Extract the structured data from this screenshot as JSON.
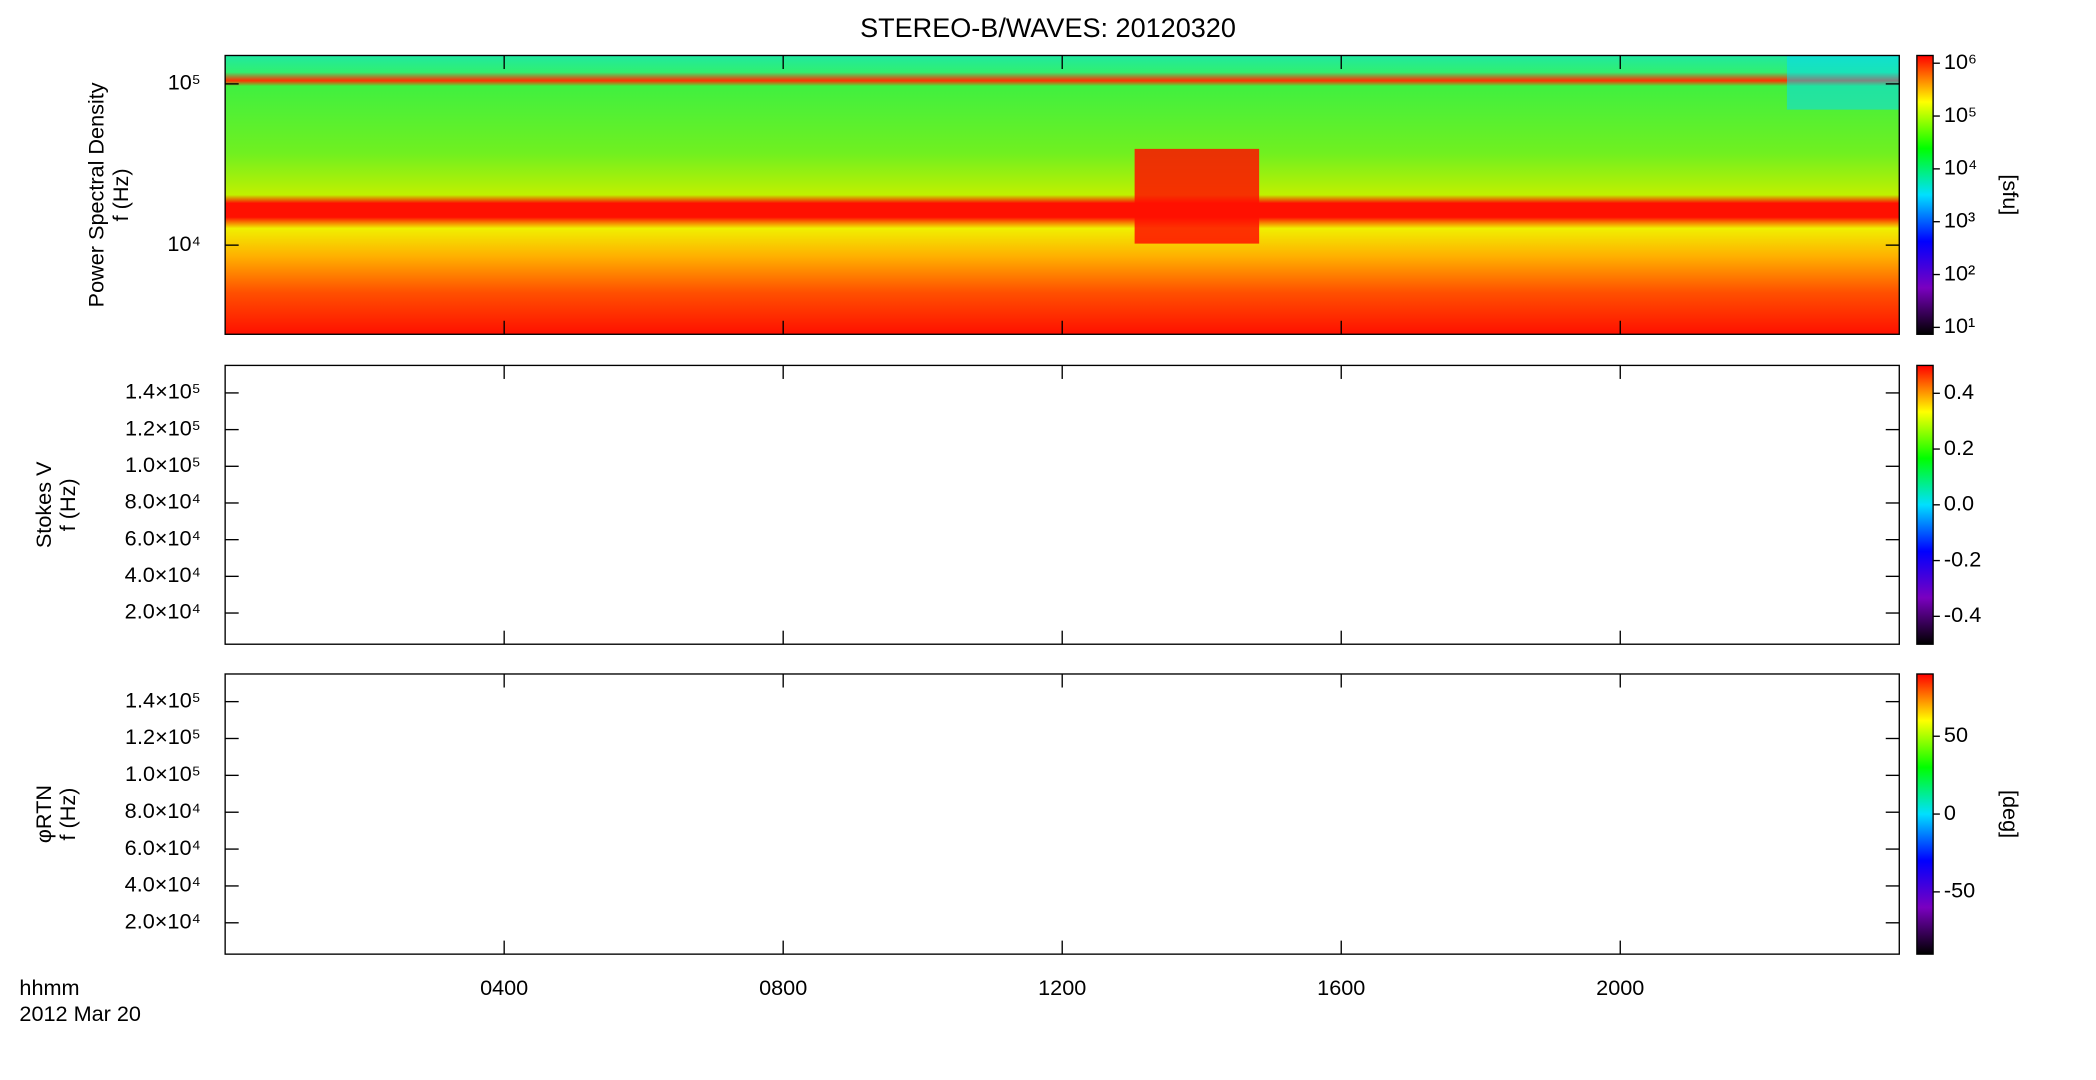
{
  "chart_data": [
    {
      "type": "spectrogram",
      "title": "STEREO-B/WAVES: 20120320",
      "y_label": [
        "Power Spectral Density",
        "f (Hz)"
      ],
      "yscale": "log",
      "ylim": [
        2800,
        150000
      ],
      "yticks": [
        {
          "value": 10000,
          "label": "10⁴"
        },
        {
          "value": 100000,
          "label": "10⁵"
        }
      ],
      "colorbar_label": "[sfu]",
      "cscale": "log",
      "clim": [
        7.4,
        1400000
      ],
      "cticks": [
        {
          "value": 10,
          "label": "10¹"
        },
        {
          "value": 100,
          "label": "10²"
        },
        {
          "value": 1000,
          "label": "10³"
        },
        {
          "value": 10000,
          "label": "10⁴"
        },
        {
          "value": 100000,
          "label": "10⁵"
        },
        {
          "value": 1000000,
          "label": "10⁶"
        }
      ],
      "colorscale": [
        "#000000",
        "#7a00c0",
        "#0000ff",
        "#00e0ff",
        "#00ff00",
        "#ffff00",
        "#ff0000"
      ]
    },
    {
      "type": "spectrogram",
      "y_label": [
        "Stokes V",
        "f (Hz)"
      ],
      "yscale": "linear",
      "ylim": [
        3000,
        155000
      ],
      "yticks": [
        {
          "value": 20000,
          "label": "2.0×10⁴"
        },
        {
          "value": 40000,
          "label": "4.0×10⁴"
        },
        {
          "value": 60000,
          "label": "6.0×10⁴"
        },
        {
          "value": 80000,
          "label": "8.0×10⁴"
        },
        {
          "value": 100000,
          "label": "1.0×10⁵"
        },
        {
          "value": 120000,
          "label": "1.2×10⁵"
        },
        {
          "value": 140000,
          "label": "1.4×10⁵"
        }
      ],
      "cscale": "linear",
      "clim": [
        -0.5,
        0.5
      ],
      "cticks": [
        {
          "value": -0.4,
          "label": "-0.4"
        },
        {
          "value": -0.2,
          "label": "-0.2"
        },
        {
          "value": 0,
          "label": "0.0"
        },
        {
          "value": 0.2,
          "label": "0.2"
        },
        {
          "value": 0.4,
          "label": "0.4"
        }
      ],
      "colorscale": [
        "#000000",
        "#7a00c0",
        "#0000ff",
        "#00e0ff",
        "#00ff00",
        "#ffff00",
        "#ff0000"
      ]
    },
    {
      "type": "spectrogram",
      "y_label": [
        "φRTN",
        "f (Hz)"
      ],
      "yscale": "linear",
      "ylim": [
        3000,
        155000
      ],
      "yticks": [
        {
          "value": 20000,
          "label": "2.0×10⁴"
        },
        {
          "value": 40000,
          "label": "4.0×10⁴"
        },
        {
          "value": 60000,
          "label": "6.0×10⁴"
        },
        {
          "value": 80000,
          "label": "8.0×10⁴"
        },
        {
          "value": 100000,
          "label": "1.0×10⁵"
        },
        {
          "value": 120000,
          "label": "1.2×10⁵"
        },
        {
          "value": 140000,
          "label": "1.4×10⁵"
        }
      ],
      "colorbar_label": "[deg]",
      "cscale": "linear",
      "clim": [
        -90,
        90
      ],
      "cticks": [
        -50,
        0,
        50
      ],
      "colorscale": [
        "#000000",
        "#7a00c0",
        "#0000ff",
        "#00e0ff",
        "#00ff00",
        "#ffff00",
        "#ff0000"
      ],
      "x_label": "hhmm",
      "date": "2012 Mar 20",
      "xlim": [
        0,
        24
      ],
      "xticks": [
        {
          "value": 4,
          "label": "0400"
        },
        {
          "value": 8,
          "label": "0800"
        },
        {
          "value": 12,
          "label": "1200"
        },
        {
          "value": 16,
          "label": "1600"
        },
        {
          "value": 20,
          "label": "2000"
        }
      ]
    }
  ]
}
